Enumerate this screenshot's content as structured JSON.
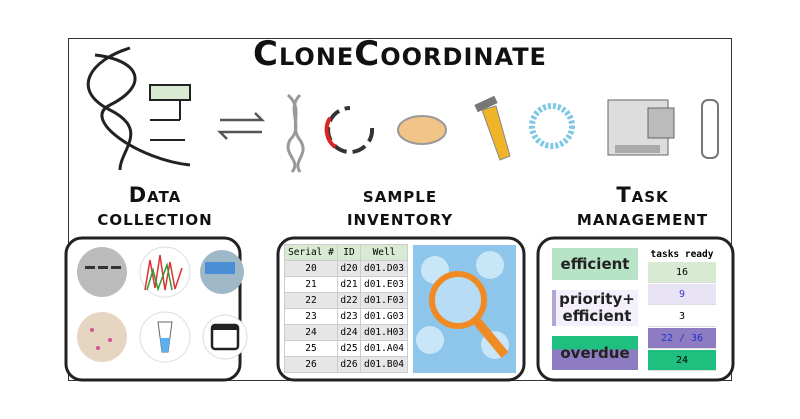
{
  "title": "CloneCoordinate",
  "sections": [
    {
      "heading": "Data collection"
    },
    {
      "heading": "sample inventory"
    },
    {
      "heading": "Task management"
    }
  ],
  "table": {
    "header": [
      "Serial #",
      "ID",
      "Well"
    ],
    "rows": [
      [
        20,
        "d20",
        "d01.D03"
      ],
      [
        21,
        "d21",
        "d01.E03"
      ],
      [
        22,
        "d22",
        "d01.F03"
      ],
      [
        23,
        "d23",
        "d01.G03"
      ],
      [
        24,
        "d24",
        "d01.H03"
      ],
      [
        25,
        "d25",
        "d01.A04"
      ],
      [
        26,
        "d26",
        "d01.B04"
      ]
    ]
  },
  "tasks": {
    "categories": [
      "efficient",
      "priority+ efficient",
      "overdue"
    ],
    "header": "tasks ready",
    "counts": [
      16,
      9,
      3,
      "22 / 36",
      24
    ]
  }
}
